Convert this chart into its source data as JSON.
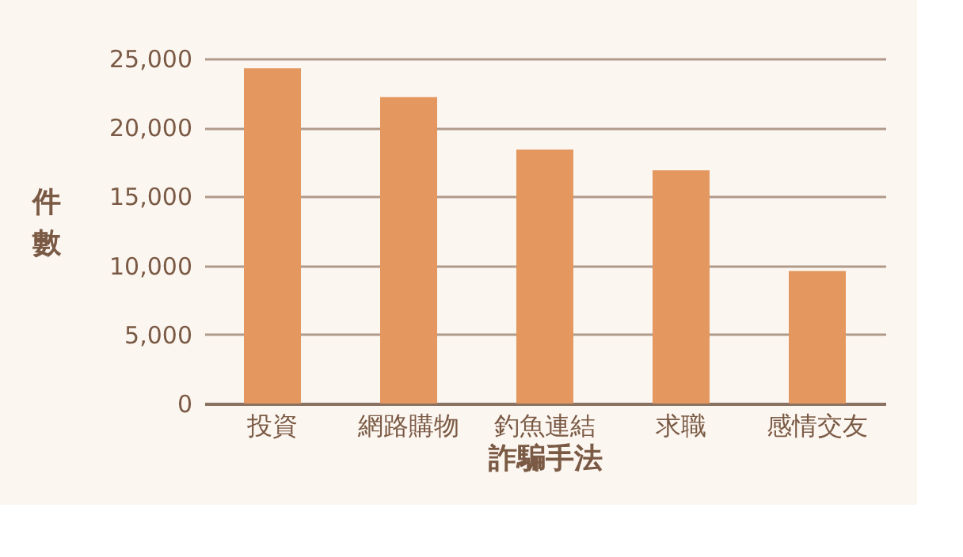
{
  "chart_data": {
    "type": "bar",
    "xlabel": "詐騙手法",
    "ylabel": "件數",
    "categories": [
      "投資",
      "網路購物",
      "釣魚連結",
      "求職",
      "感情交友"
    ],
    "values": [
      24300,
      22200,
      18400,
      16900,
      9600
    ],
    "color": "#e4975f",
    "ylim": [
      0,
      25000
    ],
    "yticks": [
      0,
      {
        "value": 5000,
        "label": "5,000"
      },
      {
        "value": 10000,
        "label": "10,000"
      },
      {
        "value": 15000,
        "label": "15,000"
      },
      {
        "value": 20000,
        "label": "20,000"
      },
      {
        "value": 25000,
        "label": "25,000"
      }
    ],
    "grid": "y"
  }
}
